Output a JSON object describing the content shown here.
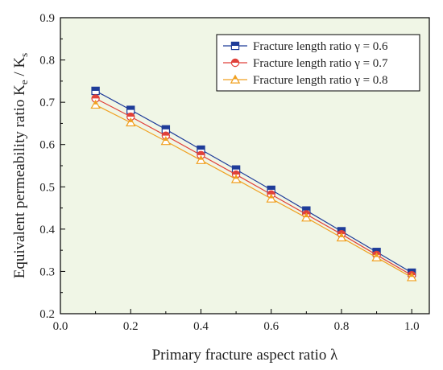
{
  "chart_data": {
    "type": "line",
    "xlabel": "Primary fracture aspect ratio λ",
    "ylabel": "Equivalent permeability ratio K",
    "ylabel_sub_e": "e",
    "ylabel_mid": " / K",
    "ylabel_sub_s": "s",
    "xlim": [
      0.0,
      1.05
    ],
    "ylim": [
      0.2,
      0.9
    ],
    "xticks": [
      0.0,
      0.2,
      0.4,
      0.6,
      0.8,
      1.0
    ],
    "xtick_labels": [
      "0.0",
      "0.2",
      "0.4",
      "0.6",
      "0.8",
      "1.0"
    ],
    "yticks": [
      0.2,
      0.3,
      0.4,
      0.5,
      0.6,
      0.7,
      0.8,
      0.9
    ],
    "ytick_labels": [
      "0.2",
      "0.3",
      "0.4",
      "0.5",
      "0.6",
      "0.7",
      "0.8",
      "0.9"
    ],
    "legend_position": "top-right",
    "grid": false,
    "background_color": "#f0f6e6",
    "x": [
      0.1,
      0.2,
      0.3,
      0.4,
      0.5,
      0.6,
      0.7,
      0.8,
      0.9,
      1.0
    ],
    "series": [
      {
        "name": "Fracture length ratio γ = 0.6",
        "marker": "square",
        "color": "#1f3c99",
        "values": [
          0.727,
          0.682,
          0.636,
          0.588,
          0.541,
          0.493,
          0.444,
          0.395,
          0.346,
          0.297
        ]
      },
      {
        "name": "Fracture length ratio γ = 0.7",
        "marker": "circle",
        "color": "#e0413a",
        "values": [
          0.709,
          0.666,
          0.621,
          0.575,
          0.529,
          0.482,
          0.435,
          0.388,
          0.339,
          0.291
        ]
      },
      {
        "name": "Fracture length ratio γ = 0.8",
        "marker": "triangle",
        "color": "#f0a020",
        "values": [
          0.694,
          0.652,
          0.608,
          0.563,
          0.518,
          0.472,
          0.427,
          0.38,
          0.333,
          0.286
        ]
      }
    ]
  }
}
